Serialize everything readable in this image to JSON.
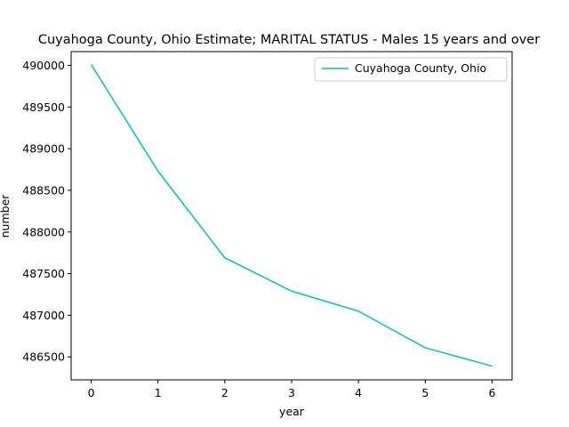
{
  "chart_data": {
    "type": "line",
    "title": "Cuyahoga County, Ohio Estimate; MARITAL STATUS - Males 15 years and over",
    "xlabel": "year",
    "ylabel": "number",
    "x": [
      0,
      1,
      2,
      3,
      4,
      5,
      6
    ],
    "xticks": [
      "0",
      "1",
      "2",
      "3",
      "4",
      "5",
      "6"
    ],
    "yticks": [
      "486500",
      "487000",
      "487500",
      "488000",
      "488500",
      "489000",
      "489500",
      "490000"
    ],
    "ytick_values": [
      486500,
      487000,
      487500,
      488000,
      488500,
      489000,
      489500,
      490000
    ],
    "xlim": [
      -0.3,
      6.3
    ],
    "ylim": [
      486225,
      490165
    ],
    "series": [
      {
        "name": "Cuyahoga County, Ohio",
        "color": "#00bfbf",
        "values": [
          490010,
          488730,
          487690,
          487290,
          487050,
          486610,
          486390
        ]
      }
    ],
    "legend": "top-right",
    "grid": false
  }
}
